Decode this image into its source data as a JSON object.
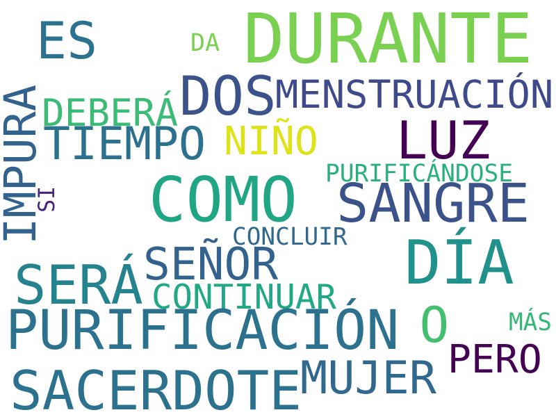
{
  "word_cloud": {
    "words": [
      {
        "key": "durante",
        "text": "DURANTE",
        "color": "#7ad151"
      },
      {
        "key": "es",
        "text": "ES",
        "color": "#2c728e"
      },
      {
        "key": "da",
        "text": "DA",
        "color": "#7ad151"
      },
      {
        "key": "dos",
        "text": "DOS",
        "color": "#3b528b"
      },
      {
        "key": "menstruacion",
        "text": "MENSTRUACIÓN",
        "color": "#3e4a89"
      },
      {
        "key": "debera",
        "text": "DEBERÁ",
        "color": "#3bbb75"
      },
      {
        "key": "impura",
        "text": "IMPURA",
        "color": "#33638d"
      },
      {
        "key": "tiempo",
        "text": "TIEMPO",
        "color": "#2c728e"
      },
      {
        "key": "nino",
        "text": "NIÑO",
        "color": "#dde318"
      },
      {
        "key": "luz",
        "text": "LUZ",
        "color": "#440154"
      },
      {
        "key": "purificandose",
        "text": "PURIFICÁNDOSE",
        "color": "#2ab07f"
      },
      {
        "key": "si",
        "text": "SI",
        "color": "#482677"
      },
      {
        "key": "como",
        "text": "COMO",
        "color": "#21a685"
      },
      {
        "key": "sangre",
        "text": "SANGRE",
        "color": "#3b528b"
      },
      {
        "key": "concluir",
        "text": "CONCLUIR",
        "color": "#31688e"
      },
      {
        "key": "senor",
        "text": "SEÑOR",
        "color": "#33638d"
      },
      {
        "key": "dia",
        "text": "DÍA",
        "color": "#21918c"
      },
      {
        "key": "sera",
        "text": "SERÁ",
        "color": "#25838e"
      },
      {
        "key": "continuar",
        "text": "CONTINUAR",
        "color": "#22a884"
      },
      {
        "key": "purificacion",
        "text": "PURIFICACIÓN",
        "color": "#2c728e"
      },
      {
        "key": "o",
        "text": "O",
        "color": "#44bf70"
      },
      {
        "key": "mas",
        "text": "MÁS",
        "color": "#35b779"
      },
      {
        "key": "pero",
        "text": "PERO",
        "color": "#440154"
      },
      {
        "key": "mujer",
        "text": "MUJER",
        "color": "#31688e"
      },
      {
        "key": "sacerdote",
        "text": "SACERDOTE",
        "color": "#2c728e"
      }
    ]
  }
}
